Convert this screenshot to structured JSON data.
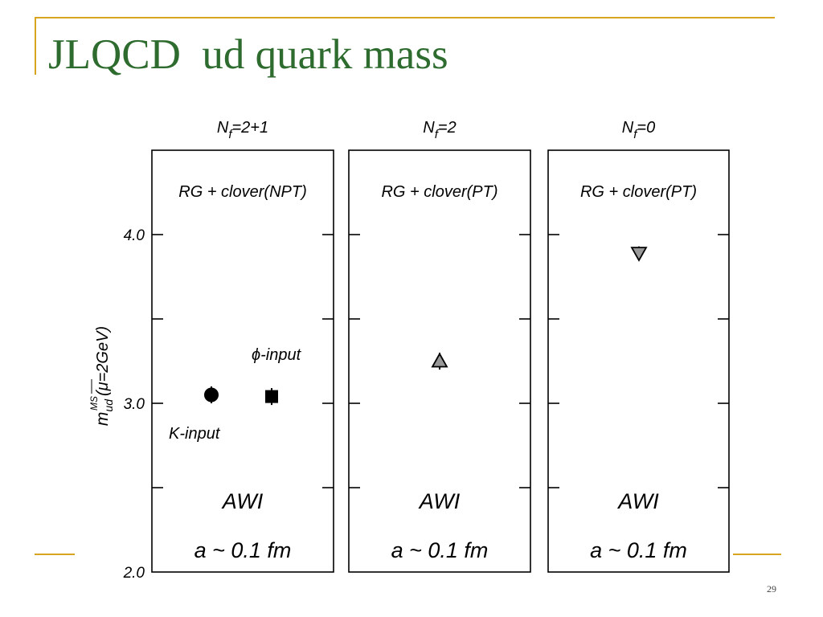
{
  "slide": {
    "title": "JLQCD  ud quark mass",
    "page_number": "29",
    "accent_color": "#d9a520",
    "title_color": "#2e6b2e"
  },
  "chart_data": {
    "type": "scatter",
    "ylabel": {
      "main": "m",
      "sub": "ud",
      "sup": "MS",
      "rest": "(μ=2GeV)"
    },
    "ylim": [
      2.0,
      4.5
    ],
    "yticks": [
      {
        "value": 2.0,
        "label": "2.0"
      },
      {
        "value": 2.5,
        "label": ""
      },
      {
        "value": 3.0,
        "label": "3.0"
      },
      {
        "value": 3.5,
        "label": ""
      },
      {
        "value": 4.0,
        "label": "4.0"
      }
    ],
    "panels": [
      {
        "header": {
          "main": "N",
          "sub": "f",
          "rest": "=2+1"
        },
        "action": "RG + clover(NPT)",
        "method": "AWI",
        "spacing": "a ~ 0.1 fm",
        "points": [
          {
            "label": "K-input",
            "y": 3.05,
            "err": 0.05,
            "marker": "circle"
          },
          {
            "label": "ϕ-input",
            "y": 3.04,
            "err": 0.05,
            "marker": "square"
          }
        ]
      },
      {
        "header": {
          "main": "N",
          "sub": "f",
          "rest": "=2"
        },
        "action": "RG + clover(PT)",
        "method": "AWI",
        "spacing": "a ~ 0.1 fm",
        "points": [
          {
            "label": "",
            "y": 3.25,
            "err": 0.05,
            "marker": "triangle-up"
          }
        ]
      },
      {
        "header": {
          "main": "N",
          "sub": "f",
          "rest": "=0"
        },
        "action": "RG + clover(PT)",
        "method": "AWI",
        "spacing": "a ~ 0.1 fm",
        "points": [
          {
            "label": "",
            "y": 3.89,
            "err": 0.04,
            "marker": "triangle-down"
          }
        ]
      }
    ]
  }
}
